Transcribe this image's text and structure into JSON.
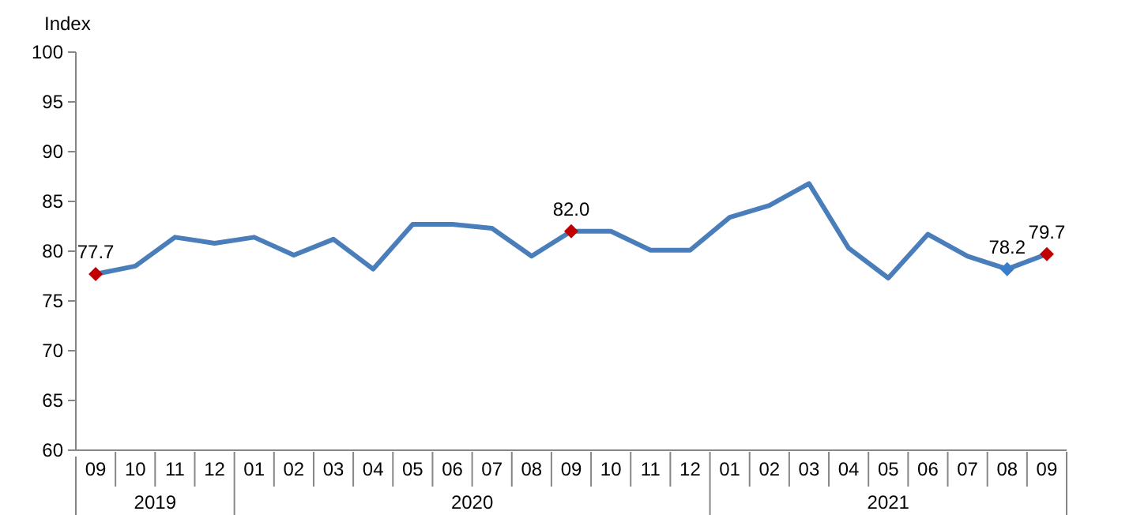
{
  "chart_data": {
    "type": "line",
    "ylabel": "Index",
    "categories": [
      "09",
      "10",
      "11",
      "12",
      "01",
      "02",
      "03",
      "04",
      "05",
      "06",
      "07",
      "08",
      "09",
      "10",
      "11",
      "12",
      "01",
      "02",
      "03",
      "04",
      "05",
      "06",
      "07",
      "08",
      "09"
    ],
    "annotations": [
      "2019",
      "2020",
      "2021"
    ],
    "series": [
      {
        "color": "#4a7ebb",
        "values": [
          77.7,
          78.5,
          81.4,
          80.8,
          81.4,
          79.6,
          81.2,
          78.2,
          82.7,
          82.7,
          82.3,
          79.5,
          82.0,
          82.0,
          80.1,
          80.1,
          83.4,
          84.6,
          86.8,
          80.3,
          77.3,
          81.7,
          79.5,
          78.2,
          79.7
        ]
      },
      {
        "type": "scatter",
        "marker": "diamond",
        "values": [
          77.7,
          null,
          null,
          null,
          null,
          null,
          null,
          null,
          null,
          null,
          null,
          null,
          82.0,
          null,
          null,
          null,
          null,
          null,
          null,
          null,
          null,
          null,
          null,
          78.2,
          79.7
        ],
        "colors": [
          "#c00000",
          null,
          null,
          null,
          null,
          null,
          null,
          null,
          null,
          null,
          null,
          null,
          "#c00000",
          null,
          null,
          null,
          null,
          null,
          null,
          null,
          null,
          null,
          null,
          "#3a7dc9",
          "#c00000"
        ],
        "value_labels": [
          "77.7",
          null,
          null,
          null,
          null,
          null,
          null,
          null,
          null,
          null,
          null,
          null,
          "82.0",
          null,
          null,
          null,
          null,
          null,
          null,
          null,
          null,
          null,
          null,
          "78.2",
          "79.7"
        ]
      }
    ],
    "ylim": [
      60,
      100
    ],
    "yticks": [
      60,
      65,
      70,
      75,
      80,
      85,
      90,
      95,
      100
    ]
  }
}
